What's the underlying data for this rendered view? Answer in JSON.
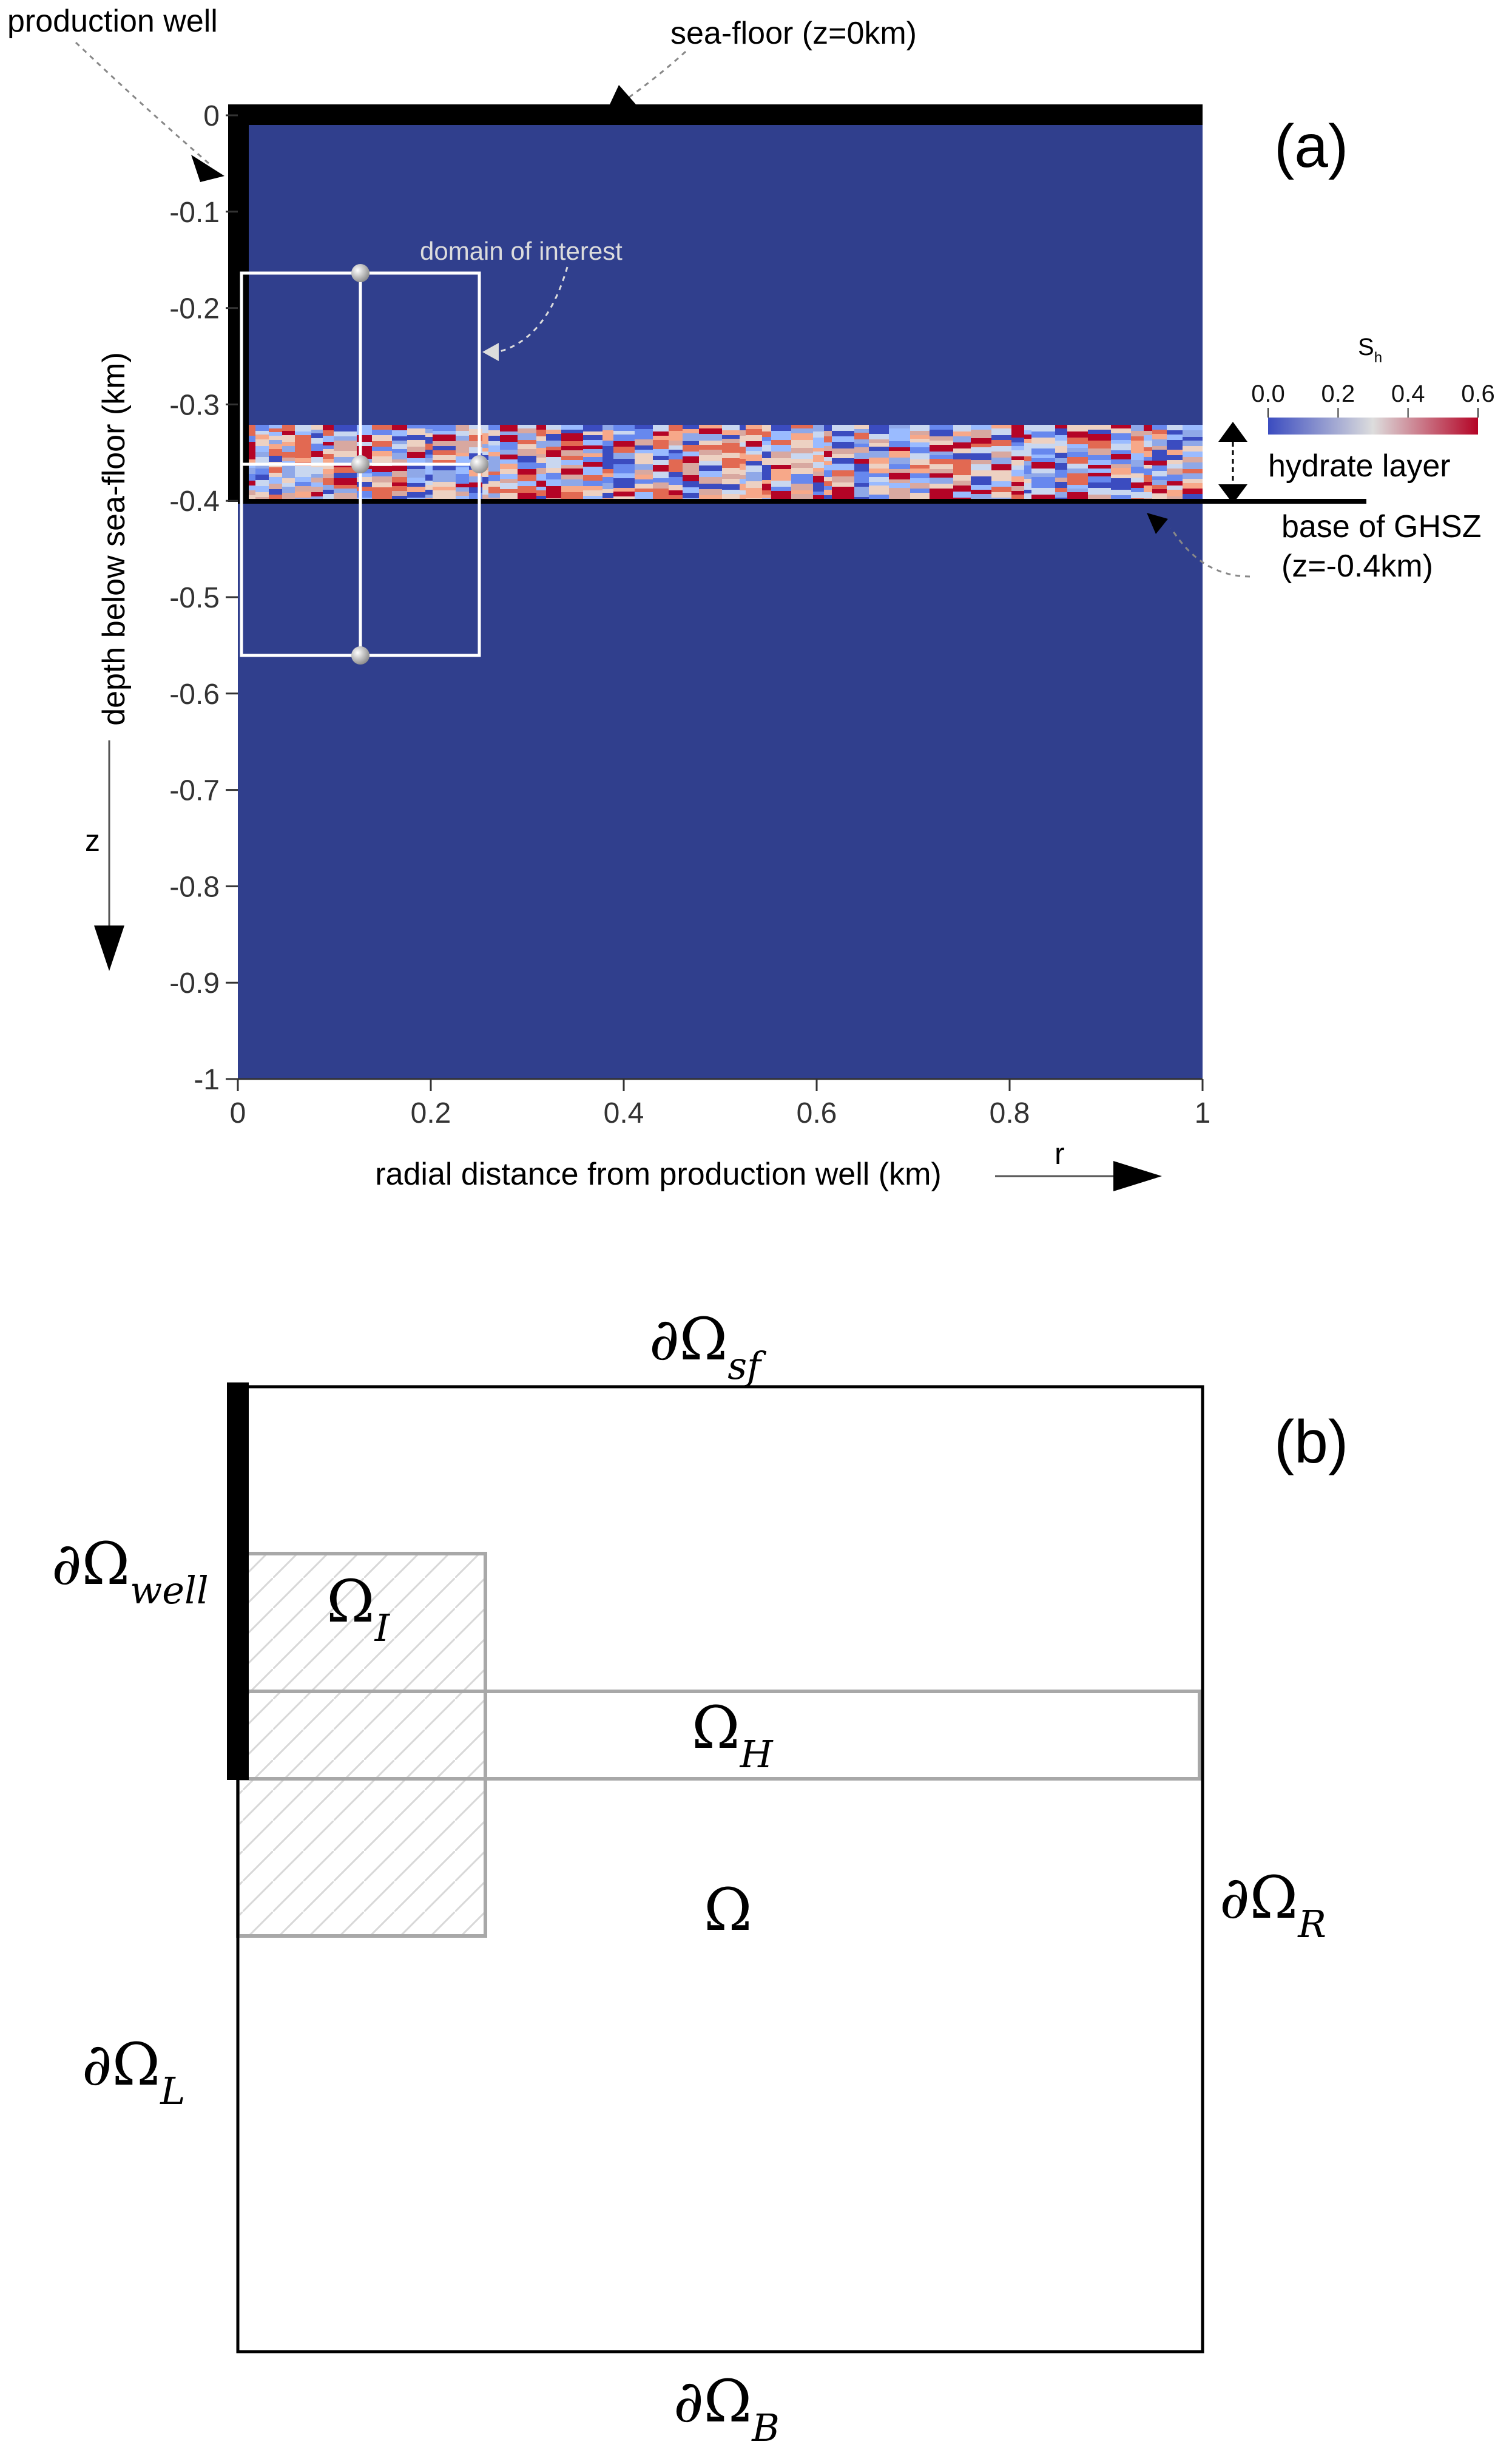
{
  "panel_a": {
    "panel_label": "(a)",
    "callouts": {
      "production_well": "production well",
      "sea_floor": "sea-floor (z=0km)",
      "domain_of_interest": "domain of interest",
      "hydrate_layer": "hydrate layer",
      "base_ghsz_line1": "base of GHSZ",
      "base_ghsz_line2": "(z=-0.4km)"
    },
    "axes": {
      "ylabel": "depth below sea-floor (km)",
      "xlabel": "radial distance from production well (km)",
      "y_ticks": [
        "0",
        "-0.1",
        "-0.2",
        "-0.3",
        "-0.4",
        "-0.5",
        "-0.6",
        "-0.7",
        "-0.8",
        "-0.9",
        "-1"
      ],
      "x_ticks": [
        "0",
        "0.2",
        "0.4",
        "0.6",
        "0.8",
        "1"
      ],
      "z_arrow_label": "z",
      "r_arrow_label": "r"
    },
    "colorbar": {
      "title": "S",
      "title_subscript": "h",
      "ticks": [
        "0.0",
        "0.2",
        "0.4",
        "0.6"
      ]
    },
    "colors": {
      "background_field": "#303f8d",
      "colormap_low": "#3b4cc0",
      "colormap_mid": "#dddddd",
      "colormap_high": "#b40426"
    }
  },
  "panel_b": {
    "panel_label": "(b)",
    "labels": {
      "omega": "Ω",
      "sym_partial": "∂",
      "sub_sf": "sf",
      "sub_well": "well",
      "sub_I": "I",
      "sub_H": "H",
      "sub_R": "R",
      "sub_L": "L",
      "sub_B": "B"
    }
  }
}
